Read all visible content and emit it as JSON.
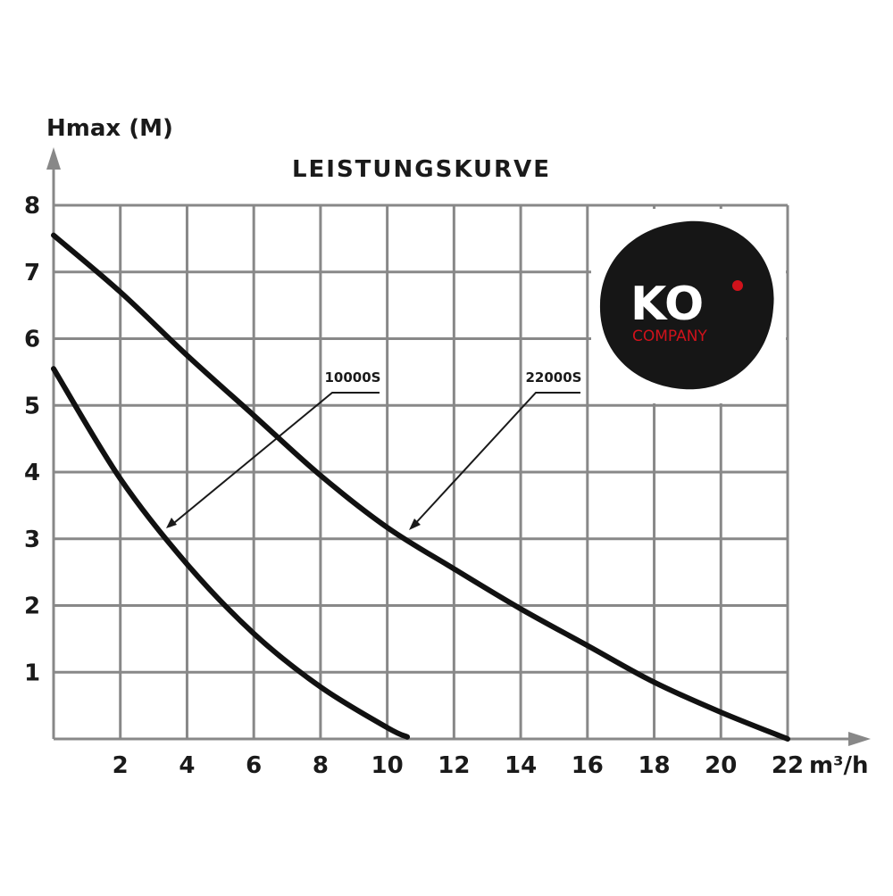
{
  "chart_data": {
    "type": "line",
    "title": "LEISTUNGSKURVE",
    "ylabel": "Hmax (M)",
    "xlabel": "m³/h",
    "xlim": [
      0,
      22
    ],
    "ylim": [
      0,
      8
    ],
    "xticks": [
      2,
      4,
      6,
      8,
      10,
      12,
      14,
      16,
      18,
      20,
      22
    ],
    "yticks": [
      1,
      2,
      3,
      4,
      5,
      6,
      7,
      8
    ],
    "grid": true,
    "series": [
      {
        "name": "10000S",
        "color": "#111111",
        "x": [
          0,
          2,
          4,
          6,
          8,
          10,
          10.6
        ],
        "values": [
          5.55,
          3.9,
          2.62,
          1.58,
          0.78,
          0.17,
          0.03
        ]
      },
      {
        "name": "22000S",
        "color": "#111111",
        "x": [
          0,
          2,
          4,
          6,
          8,
          10,
          12,
          14,
          16,
          18,
          20,
          22
        ],
        "values": [
          7.55,
          6.7,
          5.75,
          4.85,
          3.95,
          3.17,
          2.55,
          1.95,
          1.4,
          0.85,
          0.4,
          0
        ]
      }
    ],
    "logo": {
      "text": "KO",
      "subtext": "COMPANY"
    }
  }
}
